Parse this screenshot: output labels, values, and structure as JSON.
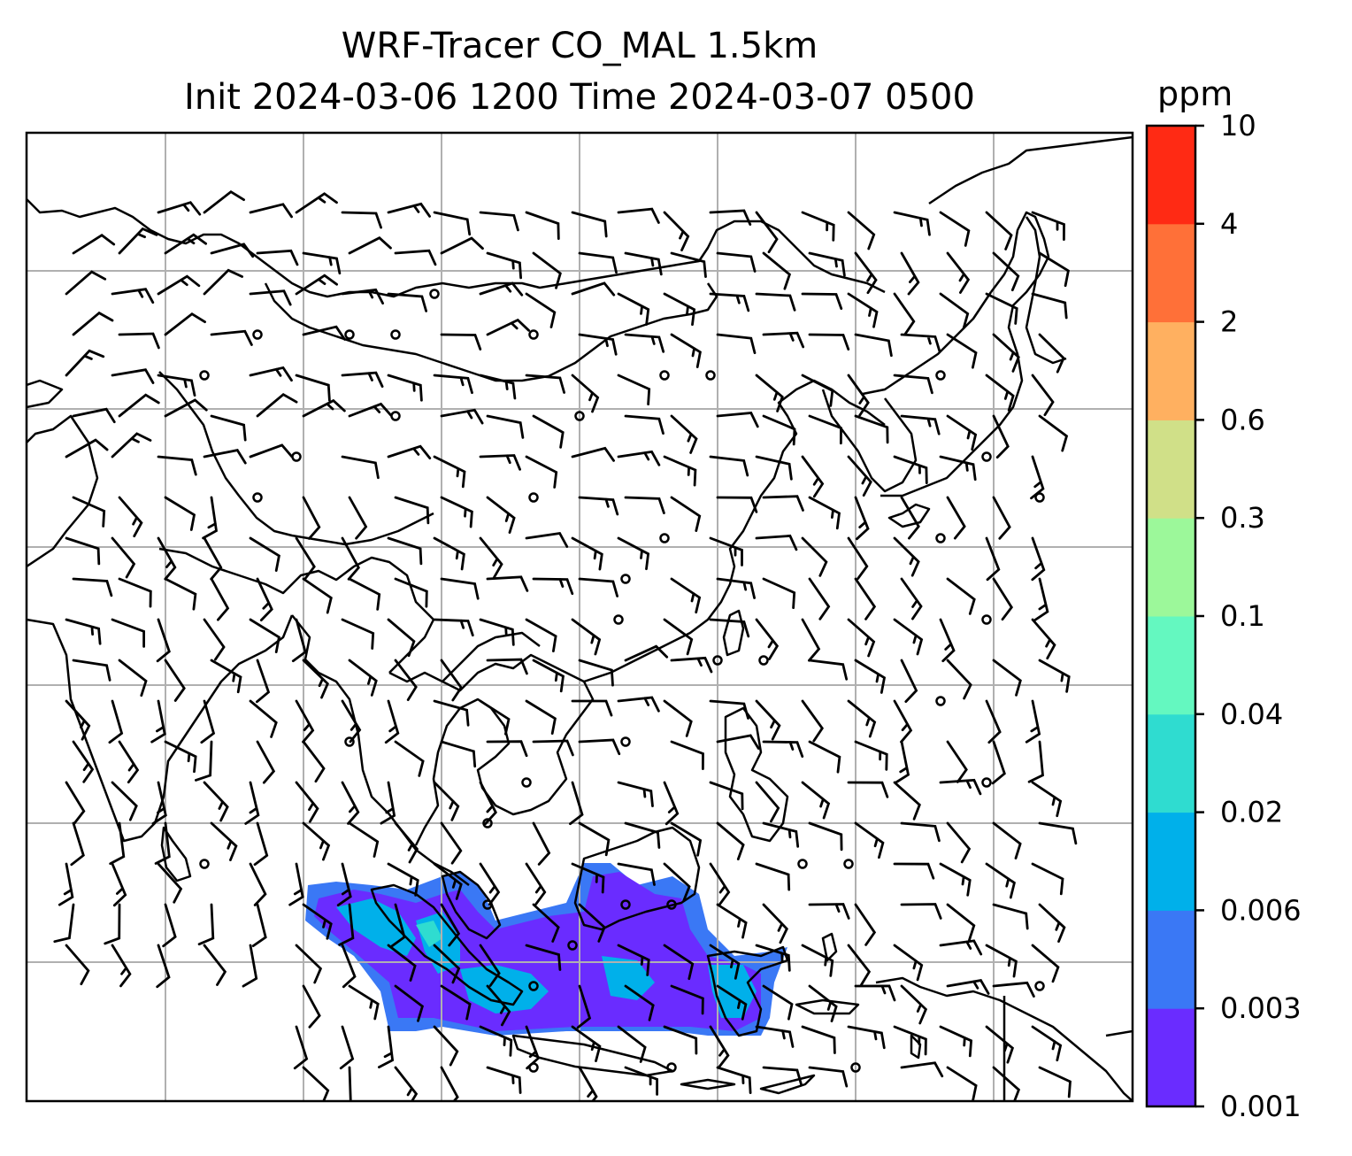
{
  "title": {
    "line1": "WRF-Tracer CO_MAL 1.5km",
    "line2": "Init 2024-03-06 1200 Time 2024-03-07 0500"
  },
  "colorbar": {
    "unit": "ppm",
    "levels": [
      "0.001",
      "0.003",
      "0.006",
      "0.02",
      "0.04",
      "0.1",
      "0.3",
      "0.6",
      "2",
      "4",
      "10"
    ],
    "colors": [
      "#6a2cff",
      "#3a78f5",
      "#00b0ea",
      "#2fdcd0",
      "#64f8c0",
      "#9cf89a",
      "#d0e088",
      "#ffb060",
      "#ff7038",
      "#ff2a14"
    ]
  },
  "map": {
    "gridline_color": "#b0b0b0",
    "coastline_color": "#000000",
    "wind_barb_color": "#000000",
    "gridlines": "on"
  }
}
